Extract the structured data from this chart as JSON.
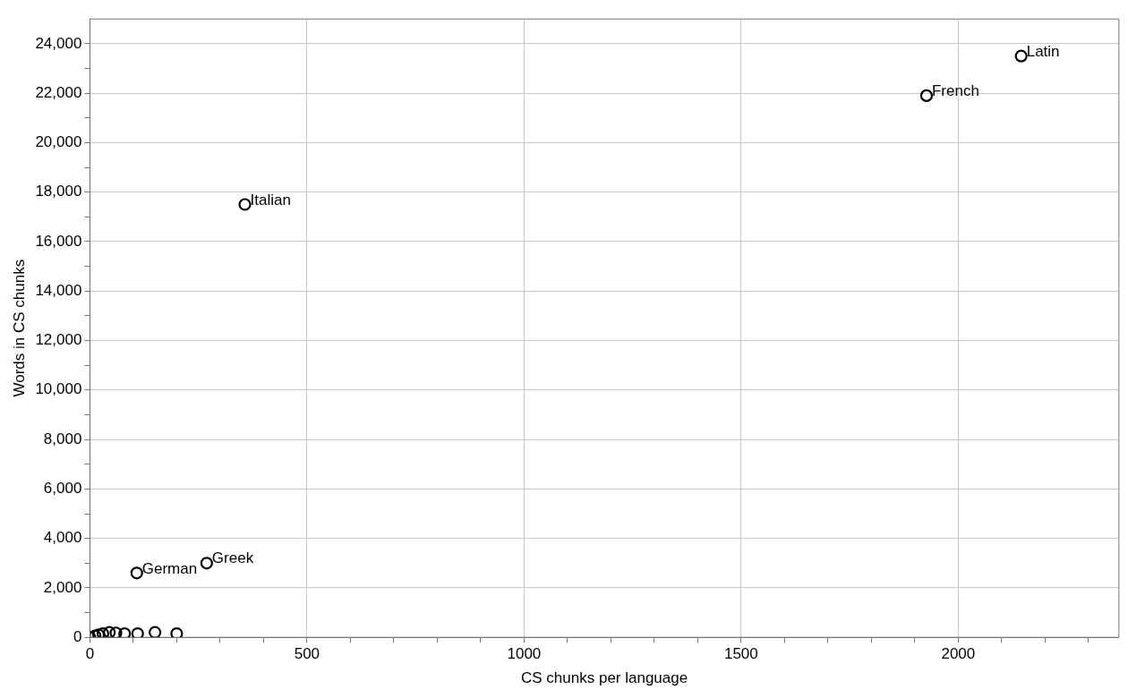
{
  "chart_data": {
    "type": "scatter",
    "xlabel": "CS chunks per language",
    "ylabel": "Words in CS chunks",
    "x": [
      2145,
      1927,
      357,
      108,
      269,
      0,
      12,
      20,
      30,
      45,
      60,
      80,
      110,
      150,
      200
    ],
    "series": [
      {
        "color": "#000000",
        "values": [
          23500,
          21900,
          17500,
          2600,
          3000,
          0,
          60,
          100,
          150,
          200,
          180,
          150,
          150,
          200,
          150
        ]
      }
    ],
    "xlim": [
      0,
      2370
    ],
    "ylim": [
      0,
      25000
    ],
    "xticks": [
      0,
      {
        "value": 100,
        "label": null
      },
      {
        "value": 200,
        "label": null
      },
      {
        "value": 300,
        "label": null
      },
      {
        "value": 400,
        "label": null
      },
      500,
      {
        "value": 600,
        "label": null
      },
      {
        "value": 700,
        "label": null
      },
      {
        "value": 800,
        "label": null
      },
      {
        "value": 900,
        "label": null
      },
      1000,
      {
        "value": 1100,
        "label": null
      },
      {
        "value": 1200,
        "label": null
      },
      {
        "value": 1300,
        "label": null
      },
      {
        "value": 1400,
        "label": null
      },
      1500,
      {
        "value": 1600,
        "label": null
      },
      {
        "value": 1700,
        "label": null
      },
      {
        "value": 1800,
        "label": null
      },
      {
        "value": 1900,
        "label": null
      },
      2000,
      {
        "value": 2100,
        "label": null
      },
      {
        "value": 2200,
        "label": null
      },
      {
        "value": 2300,
        "label": null
      }
    ],
    "yticks": [
      {
        "value": 0,
        "label": "0"
      },
      {
        "value": 1000,
        "label": null
      },
      {
        "value": 2000,
        "label": "2,000"
      },
      {
        "value": 3000,
        "label": null
      },
      {
        "value": 4000,
        "label": "4,000"
      },
      {
        "value": 5000,
        "label": null
      },
      {
        "value": 6000,
        "label": "6,000"
      },
      {
        "value": 7000,
        "label": null
      },
      {
        "value": 8000,
        "label": "8,000"
      },
      {
        "value": 9000,
        "label": null
      },
      {
        "value": 10000,
        "label": "10,000"
      },
      {
        "value": 11000,
        "label": null
      },
      {
        "value": 12000,
        "label": "12,000"
      },
      {
        "value": 13000,
        "label": null
      },
      {
        "value": 14000,
        "label": "14,000"
      },
      {
        "value": 15000,
        "label": null
      },
      {
        "value": 16000,
        "label": "16,000"
      },
      {
        "value": 17000,
        "label": null
      },
      {
        "value": 18000,
        "label": "18,000"
      },
      {
        "value": 19000,
        "label": null
      },
      {
        "value": 20000,
        "label": "20,000"
      },
      {
        "value": 21000,
        "label": null
      },
      {
        "value": 22000,
        "label": "22,000"
      },
      {
        "value": 23000,
        "label": null
      },
      {
        "value": 24000,
        "label": "24,000"
      }
    ],
    "grid": true,
    "legend": false,
    "marker": "circle",
    "annotations": [
      {
        "text": "Latin",
        "x": 2145,
        "y": 23500
      },
      {
        "text": "French",
        "x": 1927,
        "y": 21900
      },
      {
        "text": "Italian",
        "x": 357,
        "y": 17500
      },
      {
        "text": "German",
        "x": 108,
        "y": 2600
      },
      {
        "text": "Greek",
        "x": 269,
        "y": 3000
      }
    ]
  }
}
